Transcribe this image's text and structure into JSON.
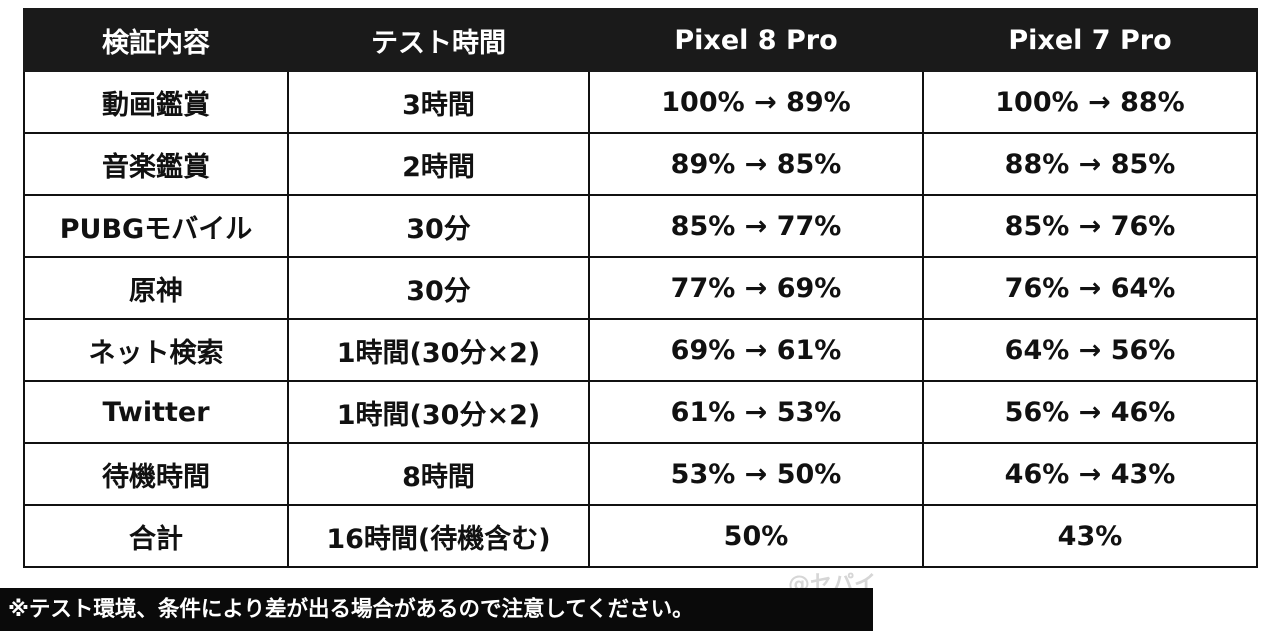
{
  "table": {
    "headers": [
      "検証内容",
      "テスト時間",
      "Pixel 8 Pro",
      "Pixel 7 Pro"
    ],
    "rows": [
      [
        "動画鑑賞",
        "3時間",
        "100% → 89%",
        "100% → 88%"
      ],
      [
        "音楽鑑賞",
        "2時間",
        "89% → 85%",
        "88% → 85%"
      ],
      [
        "PUBGモバイル",
        "30分",
        "85% → 77%",
        "85% → 76%"
      ],
      [
        "原神",
        "30分",
        "77% → 69%",
        "76% → 64%"
      ],
      [
        "ネット検索",
        "1時間(30分×2)",
        "69% → 61%",
        "64% → 56%"
      ],
      [
        "Twitter",
        "1時間(30分×2)",
        "61% → 53%",
        "56% → 46%"
      ],
      [
        "待機時間",
        "8時間",
        "53% → 50%",
        "46% → 43%"
      ],
      [
        "合計",
        "16時間(待機含む)",
        "50%",
        "43%"
      ]
    ]
  },
  "footnote": "※テスト環境、条件により差が出る場合があるので注意してください。",
  "watermark": "@セパイ",
  "colors": {
    "header_bg": "#1a1a1a",
    "header_text": "#ffffff",
    "cell_text": "#111111",
    "border": "#111111"
  }
}
